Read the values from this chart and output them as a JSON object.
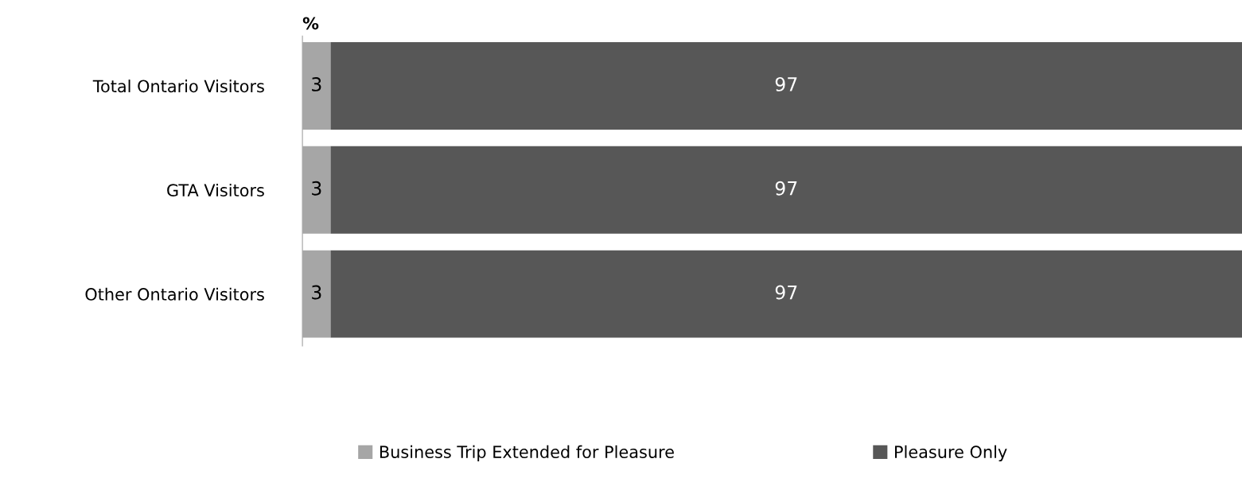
{
  "chart_data": {
    "type": "bar",
    "orientation": "horizontal",
    "stacked": true,
    "title": "%",
    "categories": [
      "Total Ontario Visitors",
      "GTA Visitors",
      "Other Ontario Visitors"
    ],
    "series": [
      {
        "name": "Business Trip Extended for Pleasure",
        "color": "#a6a6a6",
        "values": [
          3,
          3,
          3
        ]
      },
      {
        "name": "Pleasure Only",
        "color": "#575757",
        "values": [
          97,
          97,
          97
        ]
      }
    ],
    "data_labels": true,
    "legend": "bottom",
    "grid": false
  }
}
